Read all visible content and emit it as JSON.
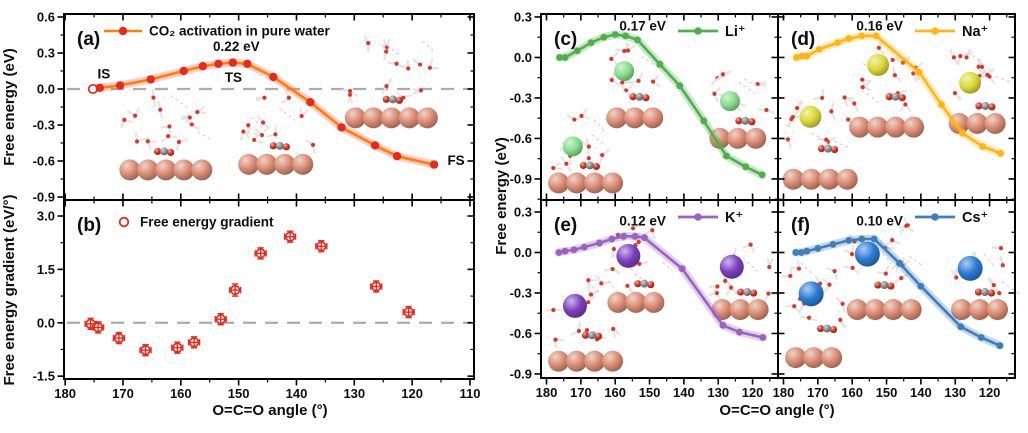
{
  "figure": {
    "xlabel": "O=C=O angle (°)",
    "ylabel_energy": "Free energy (eV)",
    "ylabel_gradient": "Free energy gradient (eV/°)",
    "background": "#ffffff",
    "zero_line_color": "#ACACAC",
    "copper_color": "#D98B72",
    "oxygen_color": "#D62F1F",
    "carbon_color": "#8A8A8A"
  },
  "chart_data": [
    {
      "id": "a",
      "panel_label": "(a)",
      "type": "line",
      "legend": "CO₂ activation in pure water",
      "color": "#FF7F00",
      "marker_color": "#E8291C",
      "band_color": "rgba(242,98,85,0.33)",
      "x_ticks": [
        180,
        170,
        160,
        150,
        140,
        130,
        120,
        110
      ],
      "y_tick_labels": [
        "0.6",
        "0.3",
        "0.0",
        "-0.3",
        "-0.6",
        "-0.9"
      ],
      "xlim": [
        180.2,
        109.3
      ],
      "ylim": [
        0.625,
        -0.925
      ],
      "zero_line": true,
      "open_first_marker": true,
      "x": [
        175.2,
        174.0,
        170.5,
        165.2,
        159.5,
        156.2,
        153.5,
        151.0,
        148.5,
        144.0,
        137.6,
        132.2,
        126.4,
        122.6,
        116.2
      ],
      "y": [
        0.0,
        0.01,
        0.03,
        0.08,
        0.15,
        0.19,
        0.21,
        0.22,
        0.21,
        0.1,
        -0.11,
        -0.32,
        -0.47,
        -0.56,
        -0.63
      ],
      "annotations": [
        {
          "text": "IS",
          "ax": 173.3,
          "av": 0.12
        },
        {
          "text": "TS",
          "ax": 150.9,
          "av": 0.09
        },
        {
          "text": "0.22 eV",
          "ax": 150.4,
          "av": 0.35
        },
        {
          "text": "FS",
          "ax": 112.4,
          "av": -0.6
        }
      ],
      "insets": [
        {
          "x": 0.135,
          "y": 0.4,
          "w": 0.21,
          "h": 0.5,
          "cation": false
        },
        {
          "x": 0.425,
          "y": 0.4,
          "w": 0.195,
          "h": 0.47,
          "cation": false
        },
        {
          "x": 0.685,
          "y": 0.1,
          "w": 0.225,
          "h": 0.52,
          "cation": false
        }
      ]
    },
    {
      "id": "b",
      "panel_label": "(b)",
      "type": "scatter",
      "legend": "Free energy gradient",
      "color": "#E8291C",
      "x_ticks": [
        180,
        170,
        160,
        150,
        140,
        130,
        120,
        110
      ],
      "y_tick_labels": [
        "3.0",
        "1.5",
        "0.0",
        "-1.5"
      ],
      "xlim": [
        180.2,
        109.3
      ],
      "ylim": [
        3.45,
        -1.58
      ],
      "zero_line": true,
      "x": [
        175.6,
        174.3,
        170.7,
        166.1,
        160.6,
        157.7,
        153.1,
        150.6,
        146.2,
        141.1,
        135.7,
        126.2,
        120.6
      ],
      "y": [
        -0.03,
        -0.13,
        -0.43,
        -0.77,
        -0.7,
        -0.55,
        0.1,
        0.92,
        1.95,
        2.42,
        2.15,
        1.02,
        0.3
      ],
      "yerr": [
        0.07,
        0.08,
        0.09,
        0.08,
        0.08,
        0.07,
        0.08,
        0.17,
        0.1,
        0.09,
        0.1,
        0.08,
        0.07
      ],
      "annotations": [],
      "insets": []
    },
    {
      "id": "c",
      "panel_label": "(c)",
      "type": "line",
      "legend": "Li⁺",
      "color": "#4DB04A",
      "marker_color": "#4DB04A",
      "band_color": "rgba(77,176,74,0.30)",
      "cation_color": "#86DE8C",
      "cation_r": 10,
      "x_ticks": [
        180,
        170,
        160,
        150,
        140,
        130,
        120
      ],
      "y_tick_labels": [
        "0.3",
        "0.0",
        "-0.3",
        "-0.6",
        "-0.9"
      ],
      "xlim": [
        181.6,
        112.6
      ],
      "ylim": [
        0.322,
        -1.056
      ],
      "zero_line": false,
      "x": [
        176.2,
        174.6,
        171.0,
        167.0,
        163.3,
        160.0,
        157.0,
        153.5,
        147.0,
        141.2,
        134.2,
        127.6,
        122.0,
        117.2
      ],
      "y": [
        0.0,
        0.0,
        0.05,
        0.11,
        0.15,
        0.17,
        0.16,
        0.13,
        -0.05,
        -0.21,
        -0.47,
        -0.73,
        -0.81,
        -0.87
      ],
      "annotations": [
        {
          "text": "0.17 eV",
          "ax": 152.0,
          "av": 0.23
        }
      ],
      "insets": [
        {
          "x": 0.03,
          "y": 0.52,
          "w": 0.3,
          "h": 0.45,
          "cation": true
        },
        {
          "x": 0.275,
          "y": 0.16,
          "w": 0.27,
          "h": 0.46,
          "cation": true
        },
        {
          "x": 0.71,
          "y": 0.28,
          "w": 0.27,
          "h": 0.45,
          "cation": true
        }
      ]
    },
    {
      "id": "d",
      "panel_label": "(d)",
      "type": "line",
      "legend": "Na⁺",
      "color": "#FFB612",
      "marker_color": "#FFB612",
      "band_color": "rgba(255,182,18,0.30)",
      "cation_color": "#D9D935",
      "cation_r": 11,
      "x_ticks": [
        180,
        170,
        160,
        150,
        140,
        130,
        120
      ],
      "y_tick_labels": [
        "0.3",
        "0.0",
        "-0.3",
        "-0.6",
        "-0.9"
      ],
      "xlim": [
        181.6,
        112.6
      ],
      "ylim": [
        0.322,
        -1.056
      ],
      "zero_line": false,
      "x": [
        176.2,
        174.6,
        173.2,
        169.6,
        164.2,
        161.0,
        157.2,
        153.0,
        140.5,
        134.0,
        127.9,
        122.0,
        116.8
      ],
      "y": [
        0.0,
        0.01,
        0.01,
        0.06,
        0.11,
        0.14,
        0.16,
        0.16,
        -0.11,
        -0.35,
        -0.56,
        -0.66,
        -0.71
      ],
      "annotations": [
        {
          "text": "0.16 eV",
          "ax": 152.0,
          "av": 0.23
        }
      ],
      "insets": [
        {
          "x": 0.02,
          "y": 0.38,
          "w": 0.31,
          "h": 0.57,
          "cation": true
        },
        {
          "x": 0.3,
          "y": 0.1,
          "w": 0.31,
          "h": 0.57,
          "cation": true
        },
        {
          "x": 0.72,
          "y": 0.15,
          "w": 0.27,
          "h": 0.5,
          "cation": true
        }
      ]
    },
    {
      "id": "e",
      "panel_label": "(e)",
      "type": "line",
      "legend": "K⁺",
      "color": "#9A63C3",
      "marker_color": "#9A63C3",
      "band_color": "rgba(154,99,195,0.30)",
      "cation_color": "#7D3FC1",
      "cation_r": 12,
      "x_ticks": [
        180,
        170,
        160,
        150,
        140,
        130,
        120
      ],
      "y_tick_labels": [
        "0.3",
        "0.0",
        "-0.3",
        "-0.6",
        "-0.9"
      ],
      "xlim": [
        181.6,
        112.6
      ],
      "ylim": [
        0.389,
        -0.93
      ],
      "zero_line": false,
      "x": [
        176.4,
        174.6,
        172.0,
        169.0,
        164.6,
        161.0,
        157.5,
        154.2,
        151.5,
        140.5,
        128.6,
        123.8,
        117.0
      ],
      "y": [
        0.0,
        0.01,
        0.02,
        0.04,
        0.07,
        0.1,
        0.12,
        0.12,
        0.11,
        -0.12,
        -0.54,
        -0.59,
        -0.63
      ],
      "annotations": [
        {
          "text": "0.12 eV",
          "ax": 152.0,
          "av": 0.23
        }
      ],
      "insets": [
        {
          "x": 0.03,
          "y": 0.42,
          "w": 0.3,
          "h": 0.55,
          "cation": true
        },
        {
          "x": 0.28,
          "y": 0.12,
          "w": 0.28,
          "h": 0.52,
          "cation": true
        },
        {
          "x": 0.72,
          "y": 0.2,
          "w": 0.27,
          "h": 0.48,
          "cation": true
        }
      ]
    },
    {
      "id": "f",
      "panel_label": "(f)",
      "type": "line",
      "legend": "Cs⁺",
      "color": "#3D7EBD",
      "marker_color": "#3D7EBD",
      "band_color": "rgba(61,126,189,0.30)",
      "cation_color": "#2B7BD4",
      "cation_r": 12.5,
      "x_ticks": [
        180,
        170,
        160,
        150,
        140,
        130,
        120
      ],
      "y_tick_labels": [
        "0.3",
        "0.0",
        "-0.3",
        "-0.6",
        "-0.9"
      ],
      "xlim": [
        181.6,
        112.6
      ],
      "ylim": [
        0.389,
        -0.93
      ],
      "zero_line": false,
      "x": [
        176.4,
        174.8,
        173.2,
        170.0,
        165.6,
        161.0,
        157.2,
        153.6,
        146.2,
        140.0,
        128.4,
        122.4,
        117.0
      ],
      "y": [
        0.0,
        0.0,
        0.01,
        0.03,
        0.06,
        0.09,
        0.1,
        0.1,
        -0.08,
        -0.25,
        -0.55,
        -0.63,
        -0.69
      ],
      "annotations": [
        {
          "text": "0.10 eV",
          "ax": 152.0,
          "av": 0.23
        }
      ],
      "insets": [
        {
          "x": 0.03,
          "y": 0.3,
          "w": 0.28,
          "h": 0.65,
          "cation": true
        },
        {
          "x": 0.29,
          "y": 0.1,
          "w": 0.3,
          "h": 0.58,
          "cation": true
        },
        {
          "x": 0.73,
          "y": 0.18,
          "w": 0.26,
          "h": 0.5,
          "cation": true
        }
      ]
    }
  ]
}
